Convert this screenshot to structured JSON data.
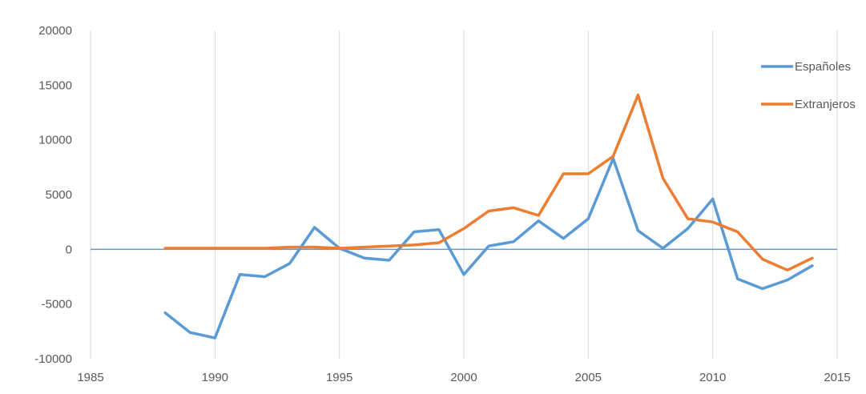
{
  "chart_data": {
    "type": "line",
    "title": "",
    "xlabel": "",
    "ylabel": "",
    "xlim": [
      1985,
      2015
    ],
    "ylim": [
      -10000,
      20000
    ],
    "xticks": [
      1985,
      1990,
      1995,
      2000,
      2005,
      2010,
      2015
    ],
    "yticks": [
      -10000,
      -5000,
      0,
      5000,
      10000,
      15000,
      20000
    ],
    "x_tick_labels": [
      "1985",
      "1990",
      "1995",
      "2000",
      "2005",
      "2010",
      "2015"
    ],
    "y_tick_labels": [
      "-10000",
      "-5000",
      "0",
      "5000",
      "10000",
      "15000",
      "20000"
    ],
    "grid": "vertical",
    "legend_position": "top-right",
    "x": [
      1988,
      1989,
      1990,
      1991,
      1992,
      1993,
      1994,
      1995,
      1996,
      1997,
      1998,
      1999,
      2000,
      2001,
      2002,
      2003,
      2004,
      2005,
      2006,
      2007,
      2008,
      2009,
      2010,
      2011,
      2012,
      2013,
      2014
    ],
    "series": [
      {
        "name": "Españoles",
        "color": "#5B9BD5",
        "values": [
          -5800,
          -7600,
          -8100,
          -2300,
          -2500,
          -1300,
          2000,
          100,
          -800,
          -1000,
          1600,
          1800,
          -2300,
          300,
          700,
          2600,
          1000,
          2800,
          8300,
          1700,
          100,
          1900,
          4600,
          -2700,
          -3600,
          -2800,
          -1500
        ]
      },
      {
        "name": "Extranjeros",
        "color": "#ED7D31",
        "values": [
          100,
          100,
          100,
          100,
          100,
          200,
          200,
          100,
          200,
          300,
          400,
          600,
          1900,
          3500,
          3800,
          3100,
          6900,
          6900,
          8500,
          14100,
          6500,
          2800,
          2500,
          1600,
          -900,
          -1900,
          -800
        ]
      }
    ]
  }
}
